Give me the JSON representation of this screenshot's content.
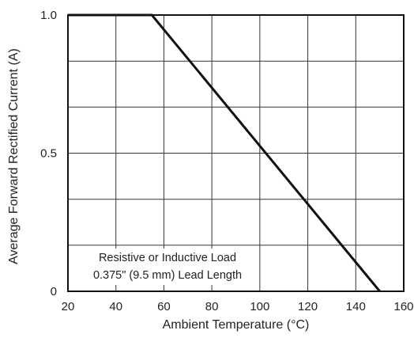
{
  "chart_data": {
    "type": "line",
    "title": "",
    "xlabel": "Ambient Temperature (°C)",
    "ylabel": "Average Forward Rectified Current (A)",
    "xlim": [
      20,
      160
    ],
    "ylim": [
      0,
      1.0
    ],
    "x_ticks": [
      20,
      40,
      60,
      80,
      100,
      120,
      140,
      160
    ],
    "x_tick_labels": [
      "20",
      "40",
      "60",
      "80",
      "100",
      "120",
      "140",
      "160"
    ],
    "y_ticks": [
      0,
      0.5,
      1.0
    ],
    "y_tick_labels": [
      "0",
      "0.5",
      "1.0"
    ],
    "y_grid": [
      0,
      0.167,
      0.333,
      0.5,
      0.667,
      0.833,
      1.0
    ],
    "grid": true,
    "series": [
      {
        "x": [
          20,
          55,
          150
        ],
        "y": [
          1.0,
          1.0,
          0
        ]
      }
    ],
    "annotations": [
      "Resistive or Inductive Load",
      "0.375\" (9.5 mm) Lead Length"
    ]
  }
}
